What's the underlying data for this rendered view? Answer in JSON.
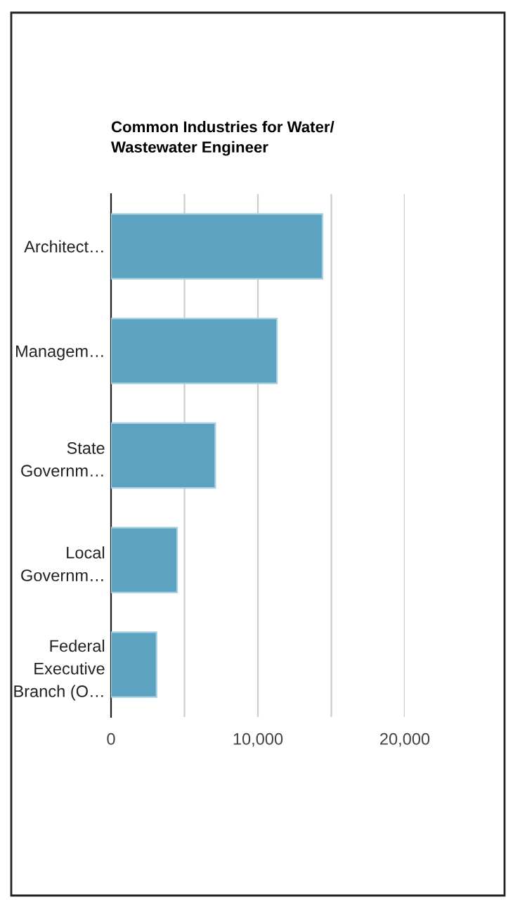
{
  "chart_data": {
    "type": "bar",
    "orientation": "horizontal",
    "title": "Common Industries for Water/\nWastewater Engineer",
    "categories": [
      "Architect…",
      "Managem…",
      "State\nGovernm…",
      "Local\nGovernm…",
      "Federal\nExecutive\nBranch (O…"
    ],
    "values": [
      14400,
      11300,
      7100,
      4500,
      3100
    ],
    "color": "#5ba3c0",
    "xlim": [
      0,
      20000
    ],
    "xticks": [
      0,
      {
        "value": 5000,
        "label": null
      },
      {
        "value": 10000,
        "label": "10,000"
      },
      {
        "value": 15000,
        "label": null
      },
      {
        "value": 20000,
        "label": "20,000"
      }
    ],
    "grid": "x",
    "legend": false
  }
}
